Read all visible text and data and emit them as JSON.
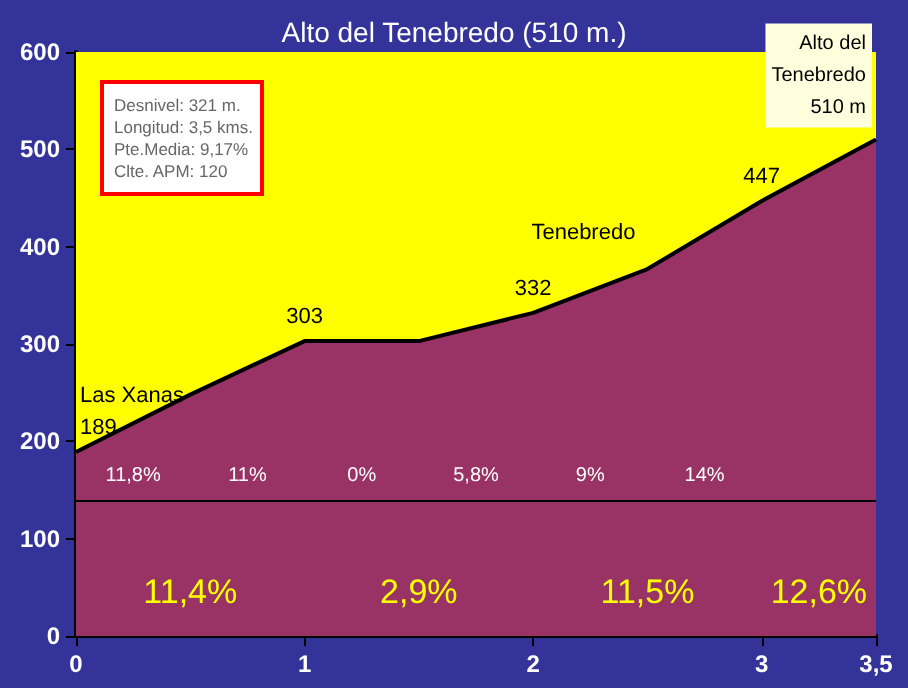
{
  "chart_data": {
    "type": "area",
    "title": "Alto del Tenebredo (510 m.)",
    "x": [
      0,
      0.5,
      1,
      1.5,
      2,
      2.5,
      3,
      3.5
    ],
    "series": [
      {
        "color": "#993366",
        "values": [
          189,
          248,
          303,
          303,
          332,
          377,
          447,
          510
        ]
      }
    ],
    "xlim": [
      0,
      3.5
    ],
    "xticks": [
      0,
      1,
      2,
      3,
      {
        "value": 3.5,
        "label": "3,5"
      }
    ],
    "ylim": [
      0,
      600
    ],
    "yticks": [
      0,
      100,
      200,
      300,
      400,
      500,
      600
    ],
    "grid": false,
    "marker": "none",
    "line_style": "solid",
    "bands": [
      {
        "axis": "x",
        "from": 0,
        "to": 3.5,
        "label": null,
        "color": "#ffff00"
      }
    ],
    "ref_lines": [
      {
        "axis": "y",
        "value": 140,
        "label": null,
        "color": "#000000"
      }
    ],
    "annotations": [
      "Desnivel: 321 m.\nLongitud: 3,5 kms.\nPte.Media: 9,17%\nClte. APM: 120",
      {
        "text": "Las Xanas\n189",
        "x": 0,
        "y": 189
      },
      {
        "text": "303",
        "x": 1,
        "y": 303
      },
      {
        "text": "332",
        "x": 2,
        "y": 332
      },
      {
        "text": "Tenebredo",
        "x": 2.5,
        "y": 377
      },
      {
        "text": "447",
        "x": 3,
        "y": 447
      },
      {
        "text": "Alto del\nTenebredo\n510 m",
        "x": 3.5,
        "y": 510
      },
      "11,8%",
      "11%",
      "0%",
      "5,8%",
      "9%",
      "14%",
      "11,4%",
      "2,9%",
      "11,5%",
      "12,6%"
    ]
  }
}
